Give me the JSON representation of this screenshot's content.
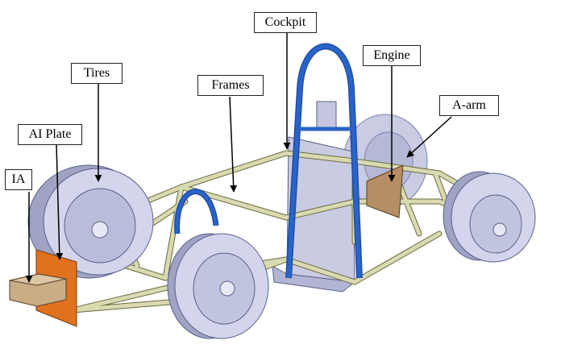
{
  "labels": {
    "ia": "IA",
    "ai_plate": "AI Plate",
    "tires": "Tires",
    "frames": "Frames",
    "cockpit": "Cockpit",
    "engine": "Engine",
    "a_arm": "A-arm"
  },
  "colors": {
    "frame_tube": "#d9dab2",
    "frame_edge": "#6b6b3e",
    "roll_hoop": "#2b64c8",
    "tire": "#d2d5ec",
    "tire_shadow": "#9fa3c4",
    "cockpit_panel": "#c9cbe2",
    "ia_plate": "#e0721f",
    "ia_block": "#c9ad86",
    "engine": "#b58e66"
  }
}
